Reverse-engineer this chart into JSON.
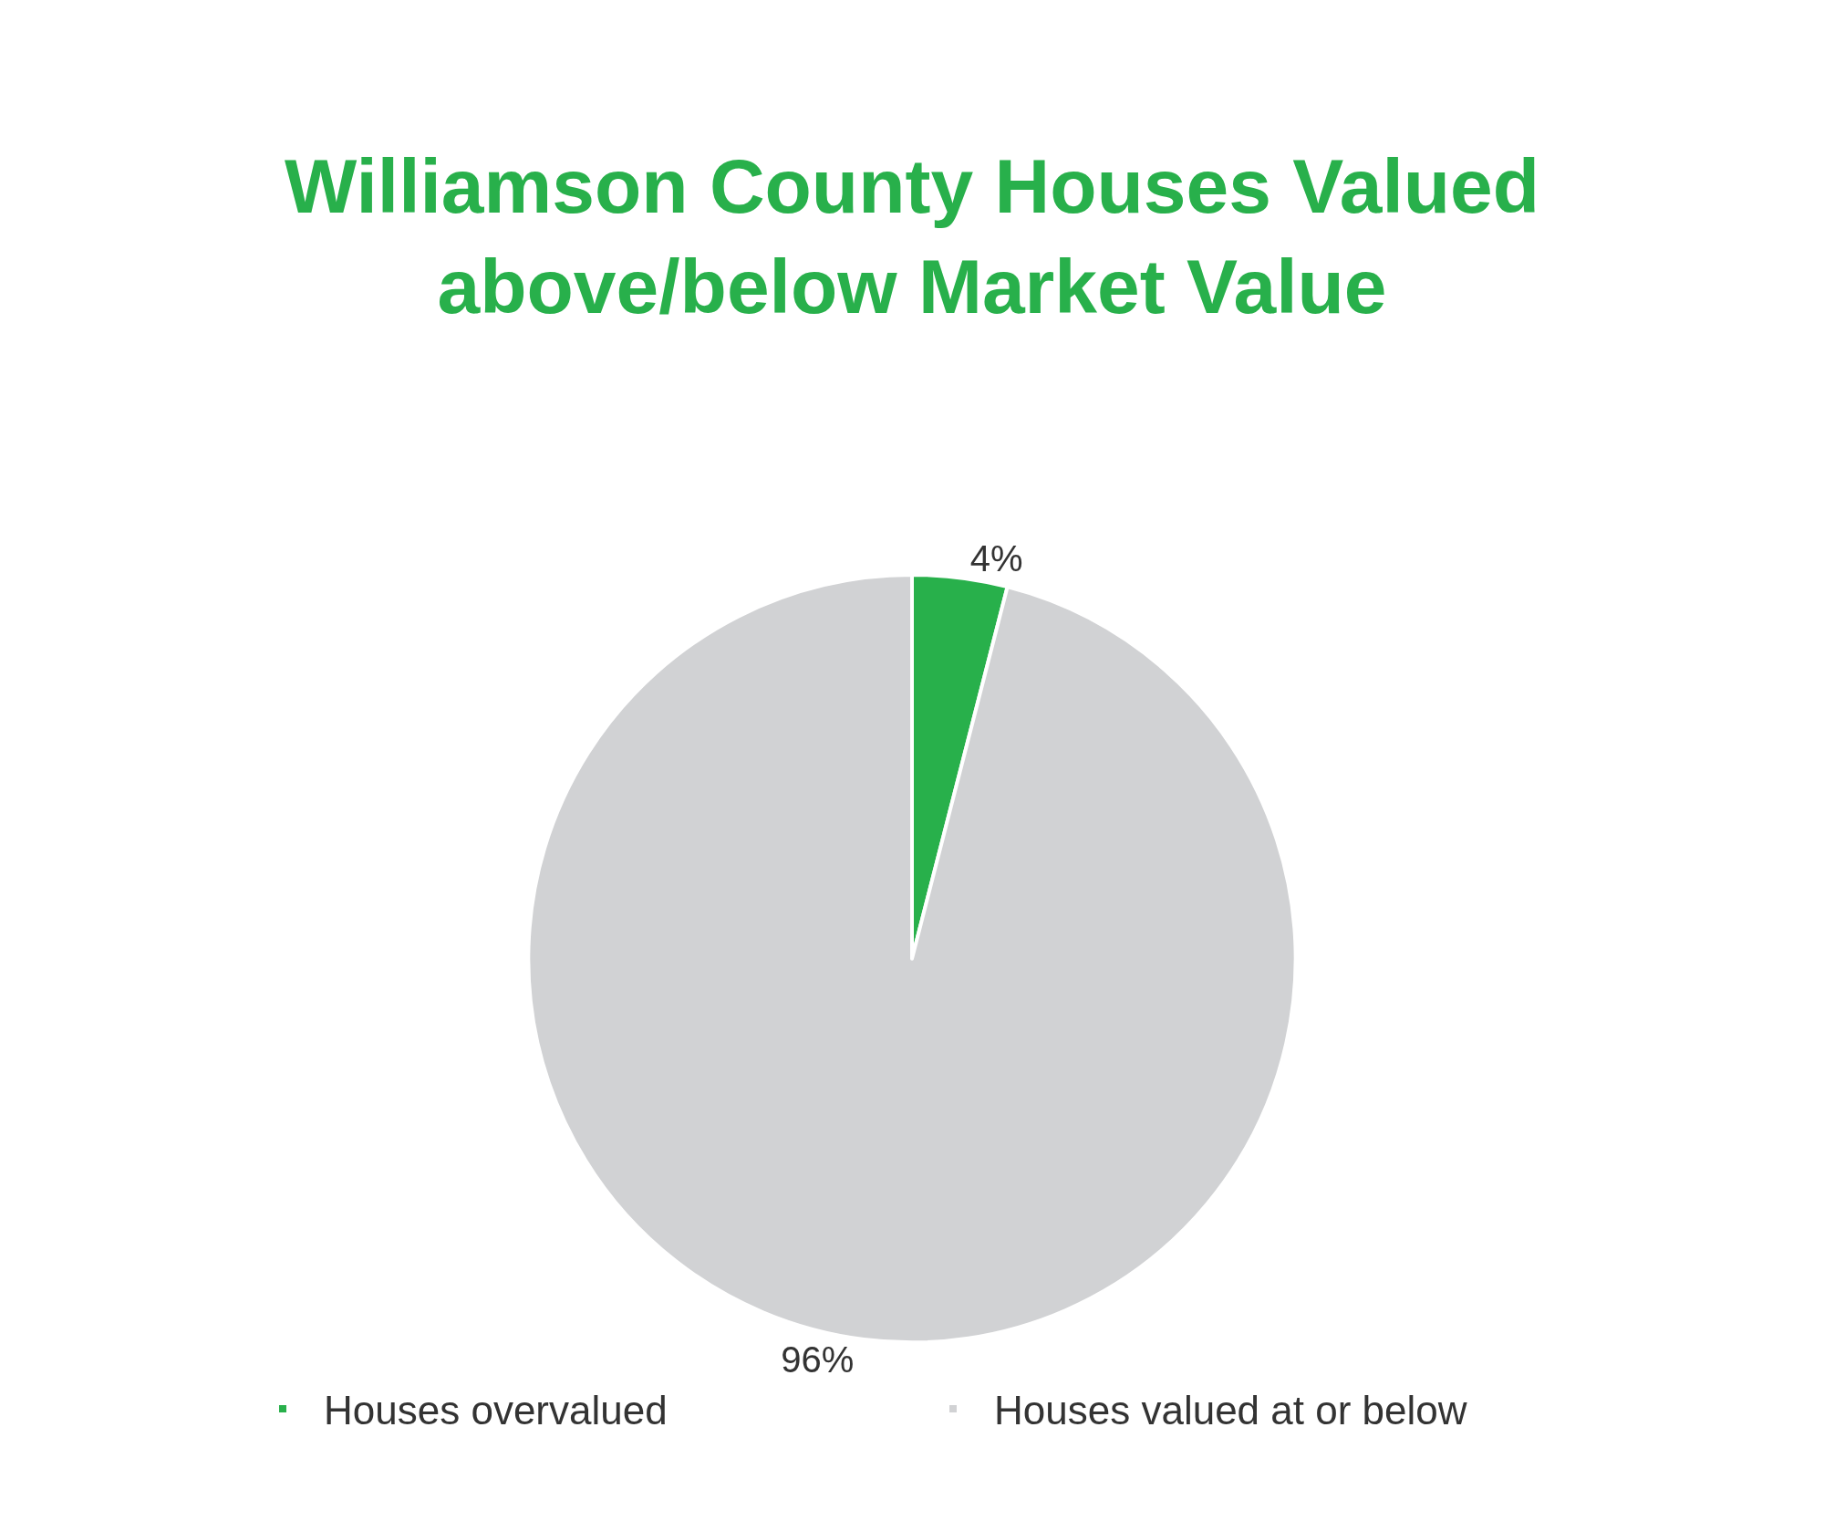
{
  "chart_data": {
    "type": "pie",
    "title": "Williamson County Houses Valued above/below Market Value",
    "categories": [
      "Houses overvalued",
      "Houses valued at or below"
    ],
    "values": [
      4,
      96
    ],
    "colors": [
      "#28b04b",
      "#d1d2d4"
    ],
    "value_labels": [
      "4%",
      "96%"
    ],
    "legend": "bottom"
  }
}
